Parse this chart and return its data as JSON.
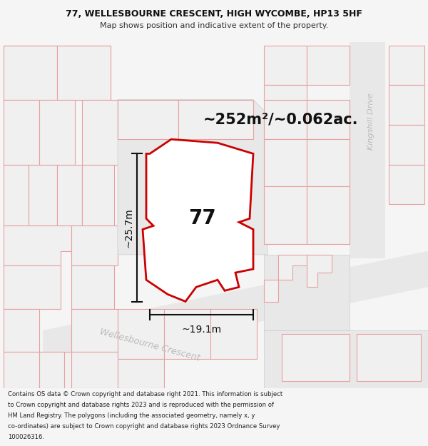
{
  "title_line1": "77, WELLESBOURNE CRESCENT, HIGH WYCOMBE, HP13 5HF",
  "title_line2": "Map shows position and indicative extent of the property.",
  "area_text": "~252m²/~0.062ac.",
  "label_77": "77",
  "dim_height": "~25.7m",
  "dim_width": "~19.1m",
  "street_label": "Wellesbourne Crescent",
  "kingshill_label": "Kingshill Drive",
  "footer_lines": [
    "Contains OS data © Crown copyright and database right 2021. This information is subject",
    "to Crown copyright and database rights 2023 and is reproduced with the permission of",
    "HM Land Registry. The polygons (including the associated geometry, namely x, y",
    "co-ordinates) are subject to Crown copyright and database rights 2023 Ordnance Survey",
    "100026316."
  ],
  "bg_color": "#f5f5f5",
  "map_bg": "#f8f8f8",
  "plot_fill": "#ffffff",
  "plot_edge": "#cc0000",
  "bldg_fill": "#f0f0f0",
  "bldg_edge": "#e8a0a0",
  "road_fill": "#e8e8e8",
  "road_edge": "#cccccc",
  "dim_color": "#111111",
  "street_text_color": "#bbbbbb",
  "kingshill_text_color": "#bbbbbb",
  "footer_bg": "#eeeeee",
  "title_bg": "#f5f5f5"
}
